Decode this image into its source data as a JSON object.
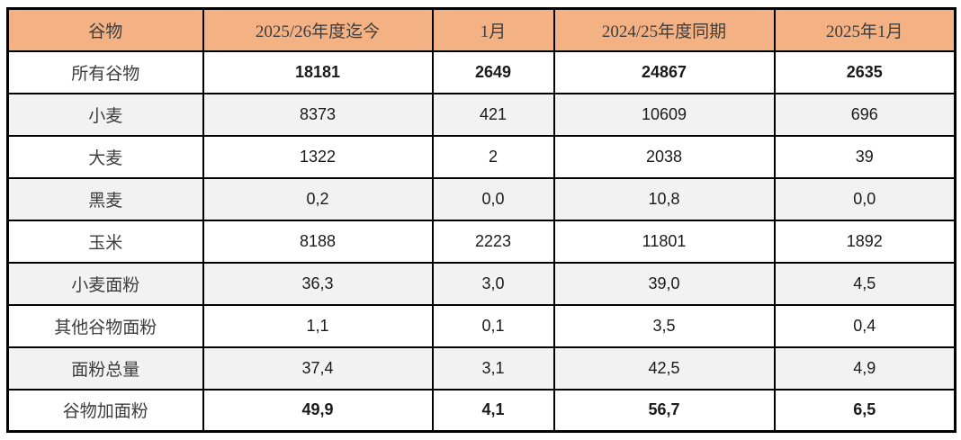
{
  "chart_data": {
    "type": "table",
    "title": "",
    "columns": [
      "谷物",
      "2025/26年度迄今",
      "1月",
      "2024/25年度同期",
      "2025年1月"
    ],
    "rows": [
      {
        "label": "所有谷物",
        "values": [
          "18181",
          "2649",
          "24867",
          "2635"
        ],
        "bold": true,
        "shaded": false
      },
      {
        "label": "小麦",
        "values": [
          "8373",
          "421",
          "10609",
          "696"
        ],
        "bold": false,
        "shaded": true
      },
      {
        "label": "大麦",
        "values": [
          "1322",
          "2",
          "2038",
          "39"
        ],
        "bold": false,
        "shaded": false
      },
      {
        "label": "黑麦",
        "values": [
          "0,2",
          "0,0",
          "10,8",
          "0,0"
        ],
        "bold": false,
        "shaded": true
      },
      {
        "label": "玉米",
        "values": [
          "8188",
          "2223",
          "11801",
          "1892"
        ],
        "bold": false,
        "shaded": false
      },
      {
        "label": "小麦面粉",
        "values": [
          "36,3",
          "3,0",
          "39,0",
          "4,5"
        ],
        "bold": false,
        "shaded": true
      },
      {
        "label": "其他谷物面粉",
        "values": [
          "1,1",
          "0,1",
          "3,5",
          "0,4"
        ],
        "bold": false,
        "shaded": false
      },
      {
        "label": "面粉总量",
        "values": [
          "37,4",
          "3,1",
          "42,5",
          "4,9"
        ],
        "bold": false,
        "shaded": true
      },
      {
        "label": "谷物加面粉",
        "values": [
          "49,9",
          "4,1",
          "56,7",
          "6,5"
        ],
        "bold": true,
        "shaded": false
      }
    ]
  },
  "colors": {
    "header_bg": "#F4B183",
    "shaded_row_bg": "#F2F2F2",
    "border": "#000000",
    "label_text": "#3D3D3D",
    "number_text": "#1A1A1A"
  }
}
